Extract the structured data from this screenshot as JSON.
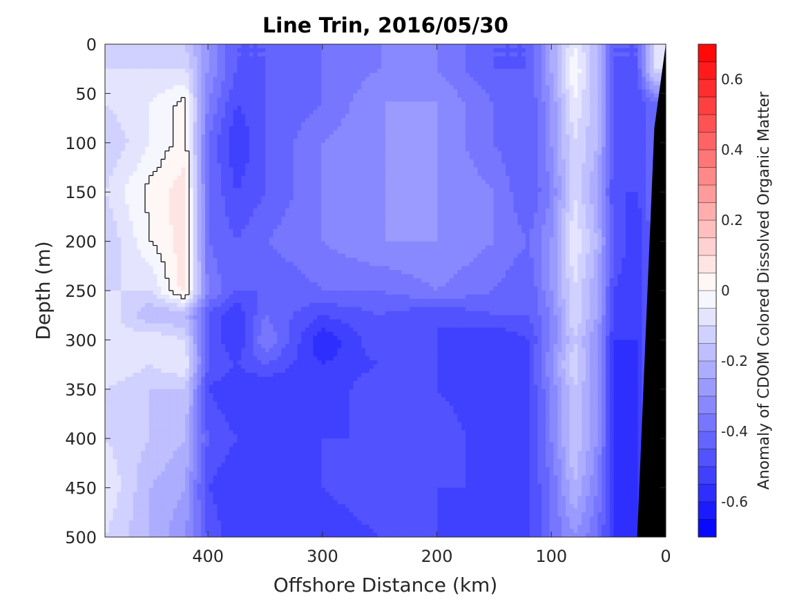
{
  "chart_data": {
    "type": "heatmap",
    "title": "Line Trin, 2016/05/30",
    "xlabel": "Offshore Distance (km)",
    "ylabel": "Depth (m)",
    "colorbar_label": "Anomaly of CDOM Colored Dissolved Organic Matter",
    "x_ticks": [
      400,
      300,
      200,
      100,
      0
    ],
    "x_tick_labels": [
      "400",
      "300",
      "200",
      "100",
      "0"
    ],
    "y_ticks": [
      0,
      50,
      100,
      150,
      200,
      250,
      300,
      350,
      400,
      450,
      500
    ],
    "y_tick_labels": [
      "0",
      "50",
      "100",
      "150",
      "200",
      "250",
      "300",
      "350",
      "400",
      "450",
      "500"
    ],
    "xlim": [
      490,
      0
    ],
    "ylim": [
      0,
      500
    ],
    "x_reversed": true,
    "y_reversed": true,
    "clim": [
      -0.7,
      0.7
    ],
    "colorbar_ticks": [
      0.6,
      0.4,
      0.2,
      0,
      -0.2,
      -0.4,
      -0.6
    ],
    "colorbar_tick_labels": [
      "0.6",
      "0.4",
      "0.2",
      "0",
      "-0.2",
      "-0.4",
      "-0.6"
    ],
    "contour_level": 0,
    "x": [
      490,
      450,
      420,
      400,
      375,
      350,
      300,
      250,
      200,
      150,
      120,
      100,
      80,
      60,
      45,
      25,
      10,
      0
    ],
    "y": [
      0,
      25,
      60,
      100,
      150,
      200,
      250,
      275,
      300,
      325,
      350,
      400,
      450,
      500
    ],
    "z": [
      [
        -0.15,
        -0.15,
        -0.15,
        -0.3,
        -0.45,
        -0.45,
        -0.4,
        -0.35,
        -0.35,
        -0.45,
        -0.45,
        -0.25,
        -0.05,
        -0.2,
        -0.45,
        -0.45,
        -0.1,
        -0.1
      ],
      [
        -0.1,
        -0.1,
        -0.1,
        -0.3,
        -0.45,
        -0.45,
        -0.4,
        -0.35,
        -0.35,
        -0.45,
        -0.45,
        -0.25,
        0.0,
        -0.2,
        -0.45,
        -0.45,
        -0.1,
        -0.1
      ],
      [
        -0.1,
        -0.05,
        0.02,
        -0.35,
        -0.5,
        -0.45,
        -0.4,
        -0.3,
        -0.3,
        -0.4,
        -0.45,
        -0.3,
        -0.05,
        -0.2,
        -0.45,
        -0.5,
        -0.4,
        -0.4
      ],
      [
        -0.15,
        -0.05,
        0.03,
        -0.4,
        -0.55,
        -0.45,
        -0.35,
        -0.3,
        -0.3,
        -0.4,
        -0.45,
        -0.3,
        -0.1,
        -0.2,
        -0.45,
        -0.5,
        -0.4,
        -0.4
      ],
      [
        -0.1,
        0.02,
        0.08,
        -0.4,
        -0.5,
        -0.45,
        -0.35,
        -0.3,
        -0.3,
        -0.35,
        -0.45,
        -0.35,
        -0.1,
        -0.25,
        -0.5,
        -0.5,
        -0.4,
        -0.4
      ],
      [
        -0.15,
        0.0,
        0.08,
        -0.4,
        -0.45,
        -0.4,
        -0.35,
        -0.3,
        -0.3,
        -0.35,
        -0.4,
        -0.3,
        -0.05,
        -0.2,
        -0.45,
        -0.55,
        -0.4,
        -0.4
      ],
      [
        -0.1,
        -0.1,
        0.08,
        -0.35,
        -0.45,
        -0.45,
        -0.4,
        -0.4,
        -0.35,
        -0.4,
        -0.45,
        -0.3,
        -0.1,
        -0.25,
        -0.5,
        -0.55,
        -0.4,
        -0.4
      ],
      [
        -0.05,
        -0.2,
        -0.2,
        -0.45,
        -0.55,
        -0.4,
        -0.5,
        -0.45,
        -0.5,
        -0.45,
        -0.45,
        -0.35,
        -0.1,
        -0.25,
        -0.5,
        -0.55,
        -0.4,
        -0.4
      ],
      [
        -0.1,
        -0.05,
        -0.1,
        -0.45,
        -0.55,
        -0.35,
        -0.6,
        -0.45,
        -0.5,
        -0.55,
        -0.5,
        -0.35,
        -0.15,
        -0.3,
        -0.55,
        -0.55,
        -0.4,
        -0.4
      ],
      [
        -0.05,
        -0.1,
        -0.05,
        -0.45,
        -0.5,
        -0.45,
        -0.55,
        -0.5,
        -0.5,
        -0.55,
        -0.5,
        -0.3,
        -0.1,
        -0.3,
        -0.55,
        -0.55,
        -0.4,
        -0.4
      ],
      [
        -0.1,
        -0.15,
        -0.15,
        -0.5,
        -0.55,
        -0.55,
        -0.55,
        -0.45,
        -0.5,
        -0.55,
        -0.5,
        -0.35,
        -0.15,
        -0.3,
        -0.55,
        -0.55,
        -0.4,
        -0.4
      ],
      [
        -0.1,
        -0.15,
        -0.2,
        -0.45,
        -0.5,
        -0.5,
        -0.5,
        -0.5,
        -0.45,
        -0.55,
        -0.5,
        -0.35,
        -0.15,
        -0.3,
        -0.55,
        -0.55,
        -0.4,
        -0.4
      ],
      [
        -0.05,
        -0.2,
        -0.25,
        -0.5,
        -0.55,
        -0.5,
        -0.5,
        -0.45,
        -0.5,
        -0.5,
        -0.5,
        -0.4,
        -0.2,
        -0.35,
        -0.55,
        -0.55,
        -0.4,
        -0.4
      ],
      [
        -0.1,
        -0.2,
        -0.3,
        -0.45,
        -0.55,
        -0.55,
        -0.55,
        -0.5,
        -0.5,
        -0.55,
        -0.5,
        -0.4,
        -0.3,
        -0.4,
        -0.55,
        -0.55,
        -0.4,
        -0.4
      ]
    ],
    "seafloor_polygon": [
      [
        0,
        0
      ],
      [
        10,
        85
      ],
      [
        25,
        500
      ],
      [
        0,
        500
      ]
    ]
  }
}
